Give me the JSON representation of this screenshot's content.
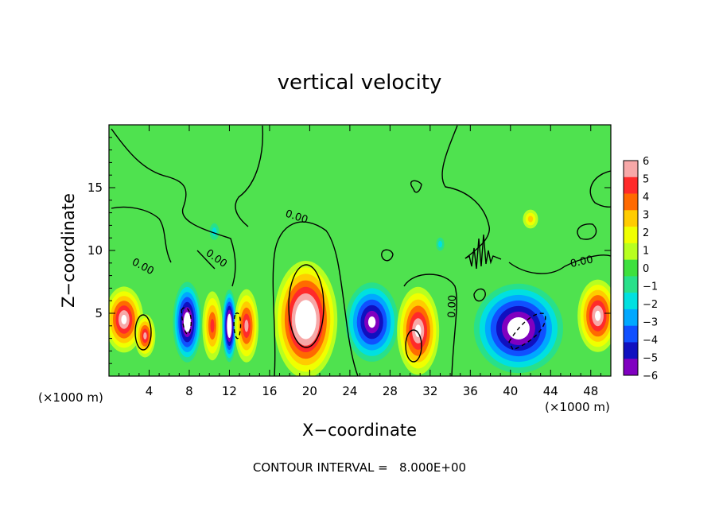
{
  "chart_data": {
    "type": "heatmap",
    "title": "vertical velocity",
    "xlabel": "X−coordinate",
    "ylabel": "Z−coordinate",
    "x_unit_label": "(×1000 m)",
    "x_unit_label_2": "(×1000 m)",
    "xlim": [
      0,
      50
    ],
    "ylim": [
      0,
      20
    ],
    "x_ticks": [
      "4",
      "8",
      "12",
      "16",
      "20",
      "24",
      "28",
      "32",
      "36",
      "40",
      "44",
      "48"
    ],
    "y_ticks": [
      "5",
      "10",
      "15"
    ],
    "colorbar_ticks": [
      "6",
      "5",
      "4",
      "3",
      "2",
      "1",
      "0",
      "−1",
      "−2",
      "−3",
      "−4",
      "−5",
      "−6"
    ],
    "colorbar_colors": [
      "#f7a8a8",
      "#ff2a2a",
      "#ff6a00",
      "#ffcc00",
      "#f0ff00",
      "#b8ff20",
      "#3ee03e",
      "#28e08a",
      "#00e0e0",
      "#00a8ff",
      "#1050ff",
      "#1010c0",
      "#8000c0"
    ],
    "contour_interval_text": "CONTOUR INTERVAL =   8.000E+00",
    "contour_labels": [
      "0.00",
      "0.00",
      "0.00",
      "0.00",
      "0.00"
    ],
    "blobs": [
      {
        "x": 1.5,
        "z": 4.5,
        "rx": 2.2,
        "rz": 3.0,
        "v": 7
      },
      {
        "x": 3.6,
        "z": 3.2,
        "rx": 1.2,
        "rz": 2.0,
        "v": 6
      },
      {
        "x": 7.8,
        "z": 4.3,
        "rx": 1.6,
        "rz": 3.6,
        "v": -8
      },
      {
        "x": 10.3,
        "z": 4.0,
        "rx": 1.2,
        "rz": 3.3,
        "v": 5
      },
      {
        "x": 12.0,
        "z": 4.0,
        "rx": 0.8,
        "rz": 3.2,
        "v": -9
      },
      {
        "x": 13.7,
        "z": 4.0,
        "rx": 1.4,
        "rz": 3.4,
        "v": 6
      },
      {
        "x": 19.6,
        "z": 4.5,
        "rx": 3.5,
        "rz": 5.2,
        "v": 9
      },
      {
        "x": 26.2,
        "z": 4.3,
        "rx": 3.0,
        "rz": 3.6,
        "v": -7
      },
      {
        "x": 30.8,
        "z": 3.6,
        "rx": 2.4,
        "rz": 4.0,
        "v": 7
      },
      {
        "x": 40.8,
        "z": 3.8,
        "rx": 5.0,
        "rz": 4.0,
        "v": -8
      },
      {
        "x": 48.7,
        "z": 4.8,
        "rx": 2.3,
        "rz": 3.3,
        "v": 7
      },
      {
        "x": 42.0,
        "z": 12.5,
        "rx": 1.0,
        "rz": 1.0,
        "v": 3
      },
      {
        "x": 10.5,
        "z": 11.5,
        "rx": 0.7,
        "rz": 1.0,
        "v": -1.5
      },
      {
        "x": 33.0,
        "z": 10.5,
        "rx": 0.6,
        "rz": 0.8,
        "v": -1.5
      }
    ]
  }
}
